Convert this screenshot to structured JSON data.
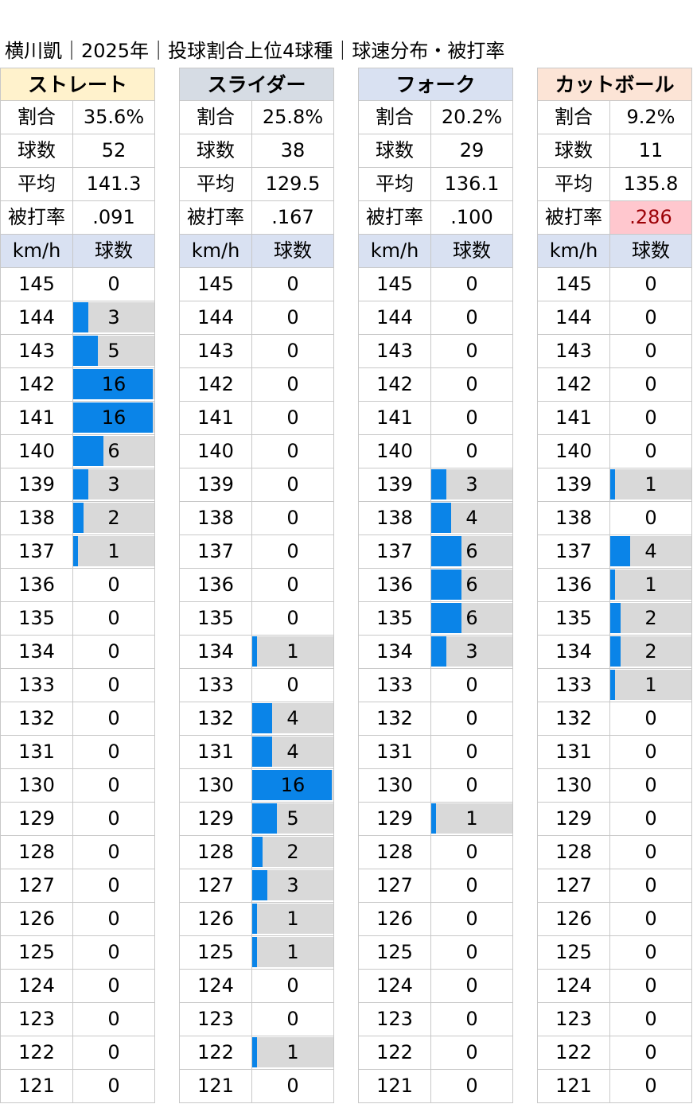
{
  "title": "横川凱｜2025年｜投球割合上位4球種｜球速分布・被打率",
  "labels": {
    "ratio": "割合",
    "count": "球数",
    "avg": "平均",
    "ba": "被打率",
    "kmh": "km/h",
    "pitches": "球数"
  },
  "colors": {
    "bar": "#0a84e8",
    "bar_bg": "#d9d9d9",
    "highlight_bg": "#ffc7ce",
    "highlight_text": "#9c0006"
  },
  "chart_data": {
    "type": "bar",
    "speeds": [
      145,
      144,
      143,
      142,
      141,
      140,
      139,
      138,
      137,
      136,
      135,
      134,
      133,
      132,
      131,
      130,
      129,
      128,
      127,
      126,
      125,
      124,
      123,
      122,
      121
    ],
    "bar_max": 16,
    "series": [
      {
        "name": "ストレート",
        "header_color": "#fff2cc",
        "ratio": "35.6%",
        "count": "52",
        "avg": "141.3",
        "ba": ".091",
        "ba_highlight": false,
        "values": [
          0,
          3,
          5,
          16,
          16,
          6,
          3,
          2,
          1,
          0,
          0,
          0,
          0,
          0,
          0,
          0,
          0,
          0,
          0,
          0,
          0,
          0,
          0,
          0,
          0
        ]
      },
      {
        "name": "スライダー",
        "header_color": "#d6dce4",
        "ratio": "25.8%",
        "count": "38",
        "avg": "129.5",
        "ba": ".167",
        "ba_highlight": false,
        "values": [
          0,
          0,
          0,
          0,
          0,
          0,
          0,
          0,
          0,
          0,
          0,
          1,
          0,
          4,
          4,
          16,
          5,
          2,
          3,
          1,
          1,
          0,
          0,
          1,
          0
        ]
      },
      {
        "name": "フォーク",
        "header_color": "#d9e1f2",
        "ratio": "20.2%",
        "count": "29",
        "avg": "136.1",
        "ba": ".100",
        "ba_highlight": false,
        "values": [
          0,
          0,
          0,
          0,
          0,
          0,
          3,
          4,
          6,
          6,
          6,
          3,
          0,
          0,
          0,
          0,
          1,
          0,
          0,
          0,
          0,
          0,
          0,
          0,
          0
        ]
      },
      {
        "name": "カットボール",
        "header_color": "#fce4d6",
        "ratio": "9.2%",
        "count": "11",
        "avg": "135.8",
        "ba": ".286",
        "ba_highlight": true,
        "values": [
          0,
          0,
          0,
          0,
          0,
          0,
          1,
          0,
          4,
          1,
          2,
          2,
          1,
          0,
          0,
          0,
          0,
          0,
          0,
          0,
          0,
          0,
          0,
          0,
          0
        ]
      }
    ]
  }
}
